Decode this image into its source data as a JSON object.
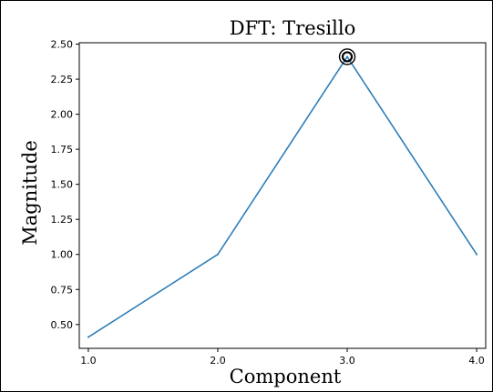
{
  "chart_data": {
    "type": "line",
    "title": "DFT: Tresillo",
    "xlabel": "Component",
    "ylabel": "Magnitude",
    "x": [
      1.0,
      2.0,
      3.0,
      4.0
    ],
    "y": [
      0.41,
      1.0,
      2.41,
      1.0
    ],
    "xlim": [
      0.93,
      4.07
    ],
    "ylim": [
      0.33,
      2.51
    ],
    "xticks": [
      "1.0",
      "2.0",
      "3.0",
      "4.0"
    ],
    "xtick_values": [
      1.0,
      2.0,
      3.0,
      4.0
    ],
    "yticks": [
      "0.50",
      "0.75",
      "1.00",
      "1.25",
      "1.50",
      "1.75",
      "2.00",
      "2.25",
      "2.50"
    ],
    "ytick_values": [
      0.5,
      0.75,
      1.0,
      1.25,
      1.5,
      1.75,
      2.0,
      2.25,
      2.5
    ],
    "highlight": {
      "x": 3.0,
      "y": 2.41,
      "marker": "double-circle"
    },
    "grid": false,
    "colors": {
      "line": "#2e7eb8",
      "highlight": "#000000"
    }
  }
}
